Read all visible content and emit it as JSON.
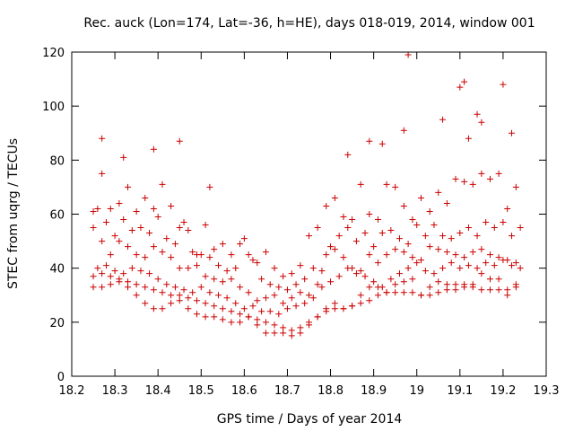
{
  "chart_data": {
    "type": "scatter",
    "title": "Rec. auck (Lon=174, Lat=-36, h=HE), days 018-019, 2014, window 001",
    "xlabel": "GPS time / Days of year 2014",
    "ylabel": "STEC from uqrg / TECUs",
    "xlim": [
      18.2,
      19.3
    ],
    "ylim": [
      0,
      120
    ],
    "xticks": [
      "18.2",
      "18.3",
      "18.4",
      "18.5",
      "18.6",
      "18.7",
      "18.8",
      "18.9",
      "19",
      "19.1",
      "19.2",
      "19.3"
    ],
    "yticks": [
      "0",
      "20",
      "40",
      "60",
      "80",
      "100",
      "120"
    ],
    "grid": false,
    "legend": "none",
    "marker": "plus",
    "color": "#cc0000",
    "series": [
      {
        "x": [
          18.25,
          18.27,
          18.29,
          18.31,
          18.33,
          18.35,
          18.37,
          18.39,
          18.41,
          18.43,
          18.45,
          18.47,
          18.49,
          18.51,
          18.53,
          18.55,
          18.57,
          18.59,
          18.61,
          18.63,
          18.65,
          18.67,
          18.69,
          18.71,
          18.73,
          18.75,
          18.77,
          18.79,
          18.81,
          18.83,
          18.85,
          18.87,
          18.89,
          18.91,
          18.93,
          18.95,
          18.97,
          18.99,
          19.01,
          19.03,
          19.05,
          19.07,
          19.09,
          19.11,
          19.13,
          19.15,
          19.17,
          19.19,
          19.21,
          19.23
        ],
        "y": [
          33,
          33,
          34,
          35,
          35,
          34,
          33,
          32,
          31,
          30,
          30,
          29,
          28,
          27,
          26,
          25,
          24,
          23,
          22,
          21,
          20,
          19,
          18,
          17,
          18,
          20,
          22,
          24,
          25,
          25,
          26,
          27,
          28,
          30,
          31,
          31,
          31,
          31,
          30,
          30,
          31,
          32,
          32,
          33,
          33,
          32,
          32,
          32,
          32,
          33
        ]
      },
      {
        "x": [
          18.25,
          18.27,
          18.29,
          18.31,
          18.33,
          18.35,
          18.37,
          18.39,
          18.41,
          18.43,
          18.45,
          18.47,
          18.49,
          18.51,
          18.53,
          18.55,
          18.57,
          18.59,
          18.61,
          18.63,
          18.65,
          18.67,
          18.69,
          18.71,
          18.73,
          18.75,
          18.77,
          18.79,
          18.81,
          18.83,
          18.85,
          18.87,
          18.89,
          18.91,
          18.93,
          18.95,
          18.97,
          18.99,
          19.01,
          19.03,
          19.05,
          19.07,
          19.09,
          19.11,
          19.13,
          19.15,
          19.17,
          19.19,
          19.21,
          19.23
        ],
        "y": [
          37,
          38,
          37,
          36,
          33,
          30,
          27,
          25,
          25,
          27,
          28,
          25,
          23,
          22,
          22,
          21,
          20,
          20,
          22,
          19,
          16,
          16,
          16,
          15,
          16,
          19,
          22,
          25,
          27,
          25,
          26,
          30,
          33,
          33,
          31,
          34,
          35,
          36,
          30,
          33,
          35,
          34,
          34,
          34,
          34,
          38,
          36,
          36,
          30,
          34
        ]
      },
      {
        "x": [
          18.26,
          18.28,
          18.3,
          18.32,
          18.34,
          18.36,
          18.38,
          18.4,
          18.42,
          18.44,
          18.46,
          18.48,
          18.5,
          18.52,
          18.54,
          18.56,
          18.58,
          18.6,
          18.62,
          18.64,
          18.66,
          18.68,
          18.7,
          18.72,
          18.74,
          18.76,
          18.78,
          18.8,
          18.82,
          18.84,
          18.86,
          18.88,
          18.9,
          18.92,
          18.94,
          18.96,
          18.98,
          19.0,
          19.02,
          19.04,
          19.06,
          19.08,
          19.1,
          19.12,
          19.14,
          19.16,
          19.18,
          19.2,
          19.22,
          19.24
        ],
        "y": [
          40,
          41,
          39,
          38,
          40,
          39,
          38,
          36,
          34,
          33,
          32,
          31,
          33,
          31,
          30,
          29,
          27,
          25,
          26,
          24,
          24,
          23,
          25,
          26,
          27,
          29,
          33,
          35,
          37,
          40,
          38,
          37,
          35,
          33,
          36,
          38,
          40,
          42,
          39,
          38,
          40,
          42,
          40,
          41,
          40,
          42,
          41,
          43,
          41,
          40
        ]
      },
      {
        "x": [
          18.25,
          18.27,
          18.29,
          18.31,
          18.33,
          18.35,
          18.37,
          18.39,
          18.41,
          18.43,
          18.45,
          18.47,
          18.49,
          18.51,
          18.53,
          18.55,
          18.57,
          18.59,
          18.61,
          18.63,
          18.65,
          18.67,
          18.69,
          18.71,
          18.73,
          18.75,
          18.77,
          18.79,
          18.81,
          18.83,
          18.85,
          18.87,
          18.89,
          18.91,
          18.93,
          18.95,
          18.97,
          18.99,
          19.01,
          19.03,
          19.05,
          19.07,
          19.09,
          19.11,
          19.13,
          19.15,
          19.17,
          19.19,
          19.21,
          19.23
        ],
        "y": [
          55,
          50,
          45,
          50,
          48,
          45,
          44,
          48,
          46,
          44,
          40,
          40,
          41,
          37,
          36,
          35,
          36,
          33,
          31,
          28,
          29,
          30,
          27,
          29,
          31,
          30,
          34,
          45,
          47,
          44,
          40,
          39,
          45,
          42,
          45,
          47,
          46,
          44,
          43,
          48,
          47,
          46,
          45,
          44,
          46,
          47,
          45,
          44,
          43,
          42
        ]
      },
      {
        "x": [
          18.26,
          18.28,
          18.3,
          18.32,
          18.34,
          18.36,
          18.38,
          18.4,
          18.42,
          18.44,
          18.46,
          18.48,
          18.5,
          18.52,
          18.54,
          18.56,
          18.58,
          18.6,
          18.62,
          18.64,
          18.66,
          18.68,
          18.7,
          18.72,
          18.74,
          18.76,
          18.78,
          18.8,
          18.82,
          18.84,
          18.86,
          18.88,
          18.9,
          18.92,
          18.94,
          18.96,
          18.98,
          19.0,
          19.02,
          19.04,
          19.06,
          19.08,
          19.1,
          19.12,
          19.14,
          19.16,
          19.18,
          19.2,
          19.22,
          19.24
        ],
        "y": [
          62,
          57,
          52,
          58,
          54,
          55,
          53,
          59,
          51,
          49,
          57,
          46,
          45,
          44,
          41,
          39,
          40,
          51,
          43,
          36,
          34,
          33,
          32,
          34,
          36,
          40,
          39,
          48,
          52,
          55,
          50,
          53,
          48,
          53,
          54,
          51,
          49,
          56,
          52,
          56,
          52,
          51,
          53,
          55,
          52,
          57,
          55,
          57,
          52,
          55
        ]
      },
      {
        "x": [
          18.25,
          18.27,
          18.29,
          18.31,
          18.33,
          18.35,
          18.37,
          18.39,
          18.41,
          18.43,
          18.45,
          18.47,
          18.49,
          18.51,
          18.53,
          18.55,
          18.57,
          18.59,
          18.61,
          18.63,
          18.65,
          18.67,
          18.69,
          18.71,
          18.73,
          18.75,
          18.77,
          18.79,
          18.81,
          18.83,
          18.85,
          18.87,
          18.89,
          18.91,
          18.93,
          18.95,
          18.97,
          18.99,
          19.01,
          19.03,
          19.05,
          19.07,
          19.09,
          19.11,
          19.13,
          19.15,
          19.17,
          19.19,
          19.21,
          19.23
        ],
        "y": [
          61,
          75,
          62,
          64,
          70,
          61,
          66,
          62,
          71,
          63,
          55,
          54,
          45,
          56,
          47,
          49,
          45,
          49,
          45,
          42,
          46,
          40,
          37,
          38,
          41,
          52,
          55,
          63,
          66,
          59,
          58,
          71,
          60,
          58,
          71,
          70,
          63,
          58,
          66,
          61,
          68,
          64,
          73,
          72,
          71,
          75,
          73,
          75,
          62,
          70
        ]
      },
      {
        "x": [
          18.27,
          18.32,
          18.39,
          18.45,
          18.52,
          18.84,
          18.89,
          18.92,
          18.97,
          18.98,
          19.06,
          19.1,
          19.11,
          19.12,
          19.14,
          19.15,
          19.2,
          19.22
        ],
        "y": [
          88,
          81,
          84,
          87,
          70,
          82,
          87,
          86,
          91,
          119,
          95,
          107,
          109,
          88,
          97,
          94,
          108,
          90
        ]
      }
    ]
  }
}
